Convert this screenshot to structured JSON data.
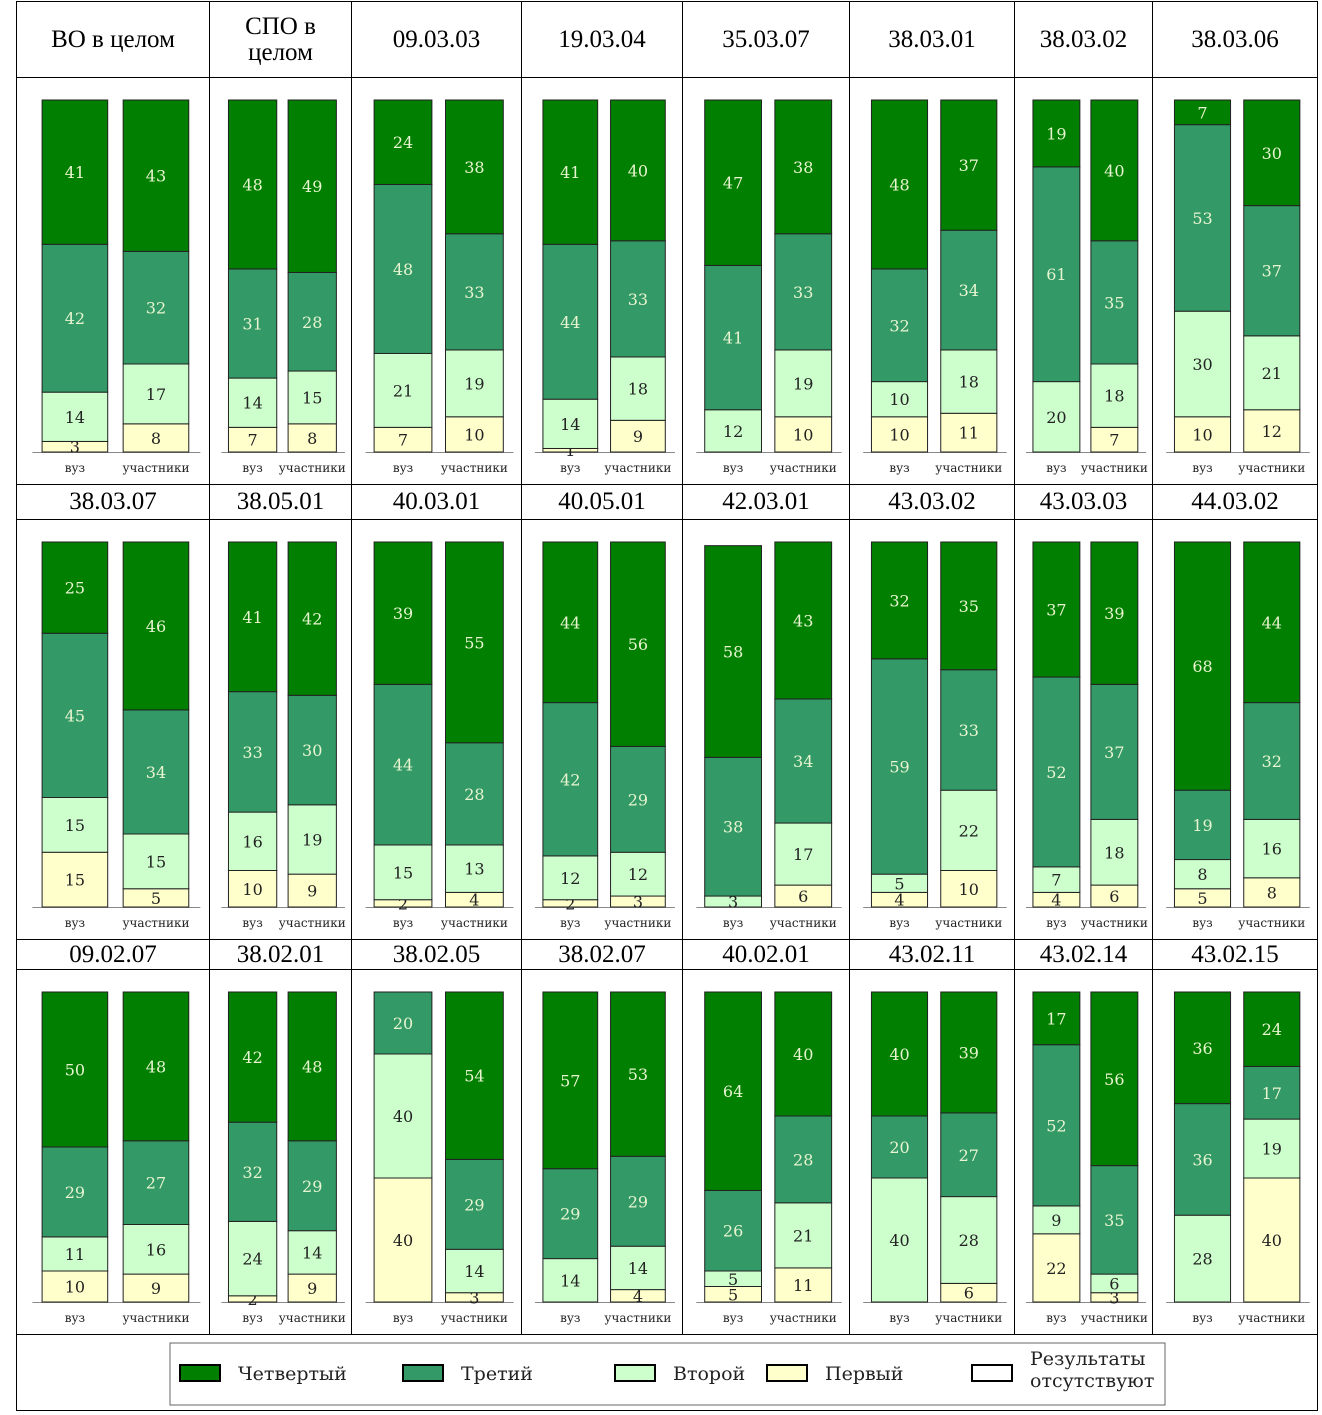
{
  "legend": [
    {
      "name": "Четвертый",
      "color": "#007f00"
    },
    {
      "name": "Третий",
      "color": "#339966"
    },
    {
      "name": "Второй",
      "color": "#ccffcc"
    },
    {
      "name": "Первый",
      "color": "#ffffcc"
    },
    {
      "name": "Результаты отсутствуют",
      "color": "#ffffff"
    }
  ],
  "chart_data": [
    {
      "type": "bar",
      "title": "ВО в целом",
      "categories": [
        "вуз",
        "участники"
      ],
      "ylim": [
        0,
        100
      ],
      "series": [
        {
          "values": [
            41,
            43
          ]
        },
        {
          "values": [
            42,
            32
          ]
        },
        {
          "values": [
            14,
            17
          ]
        },
        {
          "values": [
            3,
            8
          ]
        }
      ]
    },
    {
      "type": "bar",
      "title": "СПО в целом",
      "categories": [
        "вуз",
        "участники"
      ],
      "ylim": [
        0,
        100
      ],
      "series": [
        {
          "values": [
            48,
            49
          ]
        },
        {
          "values": [
            31,
            28
          ]
        },
        {
          "values": [
            14,
            15
          ]
        },
        {
          "values": [
            7,
            8
          ]
        }
      ]
    },
    {
      "type": "bar",
      "title": "09.03.03",
      "categories": [
        "вуз",
        "участники"
      ],
      "ylim": [
        0,
        100
      ],
      "series": [
        {
          "values": [
            24,
            38
          ]
        },
        {
          "values": [
            48,
            33
          ]
        },
        {
          "values": [
            21,
            19
          ]
        },
        {
          "values": [
            7,
            10
          ]
        }
      ]
    },
    {
      "type": "bar",
      "title": "19.03.04",
      "categories": [
        "вуз",
        "участники"
      ],
      "ylim": [
        0,
        100
      ],
      "series": [
        {
          "values": [
            41,
            40
          ]
        },
        {
          "values": [
            44,
            33
          ]
        },
        {
          "values": [
            14,
            18
          ]
        },
        {
          "values": [
            1,
            9
          ]
        }
      ]
    },
    {
      "type": "bar",
      "title": "35.03.07",
      "categories": [
        "вуз",
        "участники"
      ],
      "ylim": [
        0,
        100
      ],
      "series": [
        {
          "values": [
            47,
            38
          ]
        },
        {
          "values": [
            41,
            33
          ]
        },
        {
          "values": [
            12,
            19
          ]
        },
        {
          "values": [
            null,
            10
          ]
        }
      ]
    },
    {
      "type": "bar",
      "title": "38.03.01",
      "categories": [
        "вуз",
        "участники"
      ],
      "ylim": [
        0,
        100
      ],
      "series": [
        {
          "values": [
            48,
            37
          ]
        },
        {
          "values": [
            32,
            34
          ]
        },
        {
          "values": [
            10,
            18
          ]
        },
        {
          "values": [
            10,
            11
          ]
        }
      ]
    },
    {
      "type": "bar",
      "title": "38.03.02",
      "categories": [
        "вуз",
        "участники"
      ],
      "ylim": [
        0,
        100
      ],
      "series": [
        {
          "values": [
            19,
            40
          ]
        },
        {
          "values": [
            61,
            35
          ]
        },
        {
          "values": [
            20,
            18
          ]
        },
        {
          "values": [
            null,
            7
          ]
        }
      ]
    },
    {
      "type": "bar",
      "title": "38.03.06",
      "categories": [
        "вуз",
        "участники"
      ],
      "ylim": [
        0,
        100
      ],
      "series": [
        {
          "values": [
            7,
            30
          ]
        },
        {
          "values": [
            53,
            37
          ]
        },
        {
          "values": [
            30,
            21
          ]
        },
        {
          "values": [
            10,
            12
          ]
        }
      ]
    },
    {
      "type": "bar",
      "title": "38.03.07",
      "categories": [
        "вуз",
        "участники"
      ],
      "ylim": [
        0,
        100
      ],
      "series": [
        {
          "values": [
            25,
            46
          ]
        },
        {
          "values": [
            45,
            34
          ]
        },
        {
          "values": [
            15,
            15
          ]
        },
        {
          "values": [
            15,
            5
          ]
        }
      ]
    },
    {
      "type": "bar",
      "title": "38.05.01",
      "categories": [
        "вуз",
        "участники"
      ],
      "ylim": [
        0,
        100
      ],
      "series": [
        {
          "values": [
            41,
            42
          ]
        },
        {
          "values": [
            33,
            30
          ]
        },
        {
          "values": [
            16,
            19
          ]
        },
        {
          "values": [
            10,
            9
          ]
        }
      ]
    },
    {
      "type": "bar",
      "title": "40.03.01",
      "categories": [
        "вуз",
        "участники"
      ],
      "ylim": [
        0,
        100
      ],
      "series": [
        {
          "values": [
            39,
            55
          ]
        },
        {
          "values": [
            44,
            28
          ]
        },
        {
          "values": [
            15,
            13
          ]
        },
        {
          "values": [
            2,
            4
          ]
        }
      ]
    },
    {
      "type": "bar",
      "title": "40.05.01",
      "categories": [
        "вуз",
        "участники"
      ],
      "ylim": [
        0,
        100
      ],
      "series": [
        {
          "values": [
            44,
            56
          ]
        },
        {
          "values": [
            42,
            29
          ]
        },
        {
          "values": [
            12,
            12
          ]
        },
        {
          "values": [
            2,
            3
          ]
        }
      ]
    },
    {
      "type": "bar",
      "title": "42.03.01",
      "categories": [
        "вуз",
        "участники"
      ],
      "ylim": [
        0,
        100
      ],
      "series": [
        {
          "values": [
            58,
            43
          ]
        },
        {
          "values": [
            38,
            34
          ]
        },
        {
          "values": [
            3,
            17
          ]
        },
        {
          "values": [
            null,
            6
          ]
        }
      ]
    },
    {
      "type": "bar",
      "title": "43.03.02",
      "categories": [
        "вуз",
        "участники"
      ],
      "ylim": [
        0,
        100
      ],
      "series": [
        {
          "values": [
            32,
            35
          ]
        },
        {
          "values": [
            59,
            33
          ]
        },
        {
          "values": [
            5,
            22
          ]
        },
        {
          "values": [
            4,
            10
          ]
        }
      ]
    },
    {
      "type": "bar",
      "title": "43.03.03",
      "categories": [
        "вуз",
        "участники"
      ],
      "ylim": [
        0,
        100
      ],
      "series": [
        {
          "values": [
            37,
            39
          ]
        },
        {
          "values": [
            52,
            37
          ]
        },
        {
          "values": [
            7,
            18
          ]
        },
        {
          "values": [
            4,
            6
          ]
        }
      ]
    },
    {
      "type": "bar",
      "title": "44.03.02",
      "categories": [
        "вуз",
        "участники"
      ],
      "ylim": [
        0,
        100
      ],
      "series": [
        {
          "values": [
            68,
            44
          ]
        },
        {
          "values": [
            19,
            32
          ]
        },
        {
          "values": [
            8,
            16
          ]
        },
        {
          "values": [
            5,
            8
          ]
        }
      ]
    },
    {
      "type": "bar",
      "title": "09.02.07",
      "categories": [
        "вуз",
        "участники"
      ],
      "ylim": [
        0,
        100
      ],
      "series": [
        {
          "values": [
            50,
            48
          ]
        },
        {
          "values": [
            29,
            27
          ]
        },
        {
          "values": [
            11,
            16
          ]
        },
        {
          "values": [
            10,
            9
          ]
        }
      ]
    },
    {
      "type": "bar",
      "title": "38.02.01",
      "categories": [
        "вуз",
        "участники"
      ],
      "ylim": [
        0,
        100
      ],
      "series": [
        {
          "values": [
            42,
            48
          ]
        },
        {
          "values": [
            32,
            29
          ]
        },
        {
          "values": [
            24,
            14
          ]
        },
        {
          "values": [
            2,
            9
          ]
        }
      ]
    },
    {
      "type": "bar",
      "title": "38.02.05",
      "categories": [
        "вуз",
        "участники"
      ],
      "ylim": [
        0,
        100
      ],
      "series": [
        {
          "values": [
            null,
            54
          ]
        },
        {
          "values": [
            20,
            29
          ]
        },
        {
          "values": [
            40,
            14
          ]
        },
        {
          "values": [
            40,
            3
          ]
        }
      ]
    },
    {
      "type": "bar",
      "title": "38.02.07",
      "categories": [
        "вуз",
        "участники"
      ],
      "ylim": [
        0,
        100
      ],
      "series": [
        {
          "values": [
            57,
            53
          ]
        },
        {
          "values": [
            29,
            29
          ]
        },
        {
          "values": [
            14,
            14
          ]
        },
        {
          "values": [
            null,
            4
          ]
        }
      ]
    },
    {
      "type": "bar",
      "title": "40.02.01",
      "categories": [
        "вуз",
        "участники"
      ],
      "ylim": [
        0,
        100
      ],
      "series": [
        {
          "values": [
            64,
            40
          ]
        },
        {
          "values": [
            26,
            28
          ]
        },
        {
          "values": [
            5,
            21
          ]
        },
        {
          "values": [
            5,
            11
          ]
        }
      ]
    },
    {
      "type": "bar",
      "title": "43.02.11",
      "categories": [
        "вуз",
        "участники"
      ],
      "ylim": [
        0,
        100
      ],
      "series": [
        {
          "values": [
            40,
            39
          ]
        },
        {
          "values": [
            20,
            27
          ]
        },
        {
          "values": [
            40,
            28
          ]
        },
        {
          "values": [
            null,
            6
          ]
        }
      ]
    },
    {
      "type": "bar",
      "title": "43.02.14",
      "categories": [
        "вуз",
        "участники"
      ],
      "ylim": [
        0,
        100
      ],
      "series": [
        {
          "values": [
            17,
            56
          ]
        },
        {
          "values": [
            52,
            35
          ]
        },
        {
          "values": [
            9,
            6
          ]
        },
        {
          "values": [
            22,
            3
          ]
        }
      ]
    },
    {
      "type": "bar",
      "title": "43.02.15",
      "categories": [
        "вуз",
        "участники"
      ],
      "ylim": [
        0,
        100
      ],
      "series": [
        {
          "values": [
            36,
            24
          ]
        },
        {
          "values": [
            36,
            17
          ]
        },
        {
          "values": [
            28,
            19
          ]
        },
        {
          "values": [
            null,
            40
          ]
        }
      ]
    }
  ]
}
